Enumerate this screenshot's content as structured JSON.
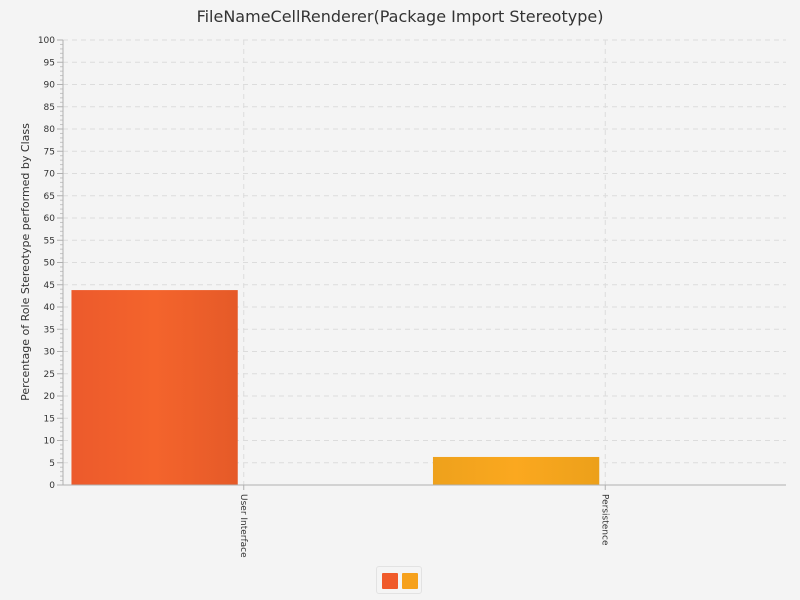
{
  "chart_data": {
    "type": "bar",
    "title": "FileNameCellRenderer(Package Import Stereotype)",
    "ylabel": "Percentage of Role Stereotype performed by Class",
    "xlabel": "",
    "categories": [
      "User Interface",
      "Persistence"
    ],
    "values": [
      43.8,
      6.3
    ],
    "colors": [
      "#f05a2a",
      "#f6a11c"
    ],
    "ylim": [
      0,
      100
    ],
    "ytick_step": 5,
    "grid": true,
    "legend": "bottom-center"
  }
}
